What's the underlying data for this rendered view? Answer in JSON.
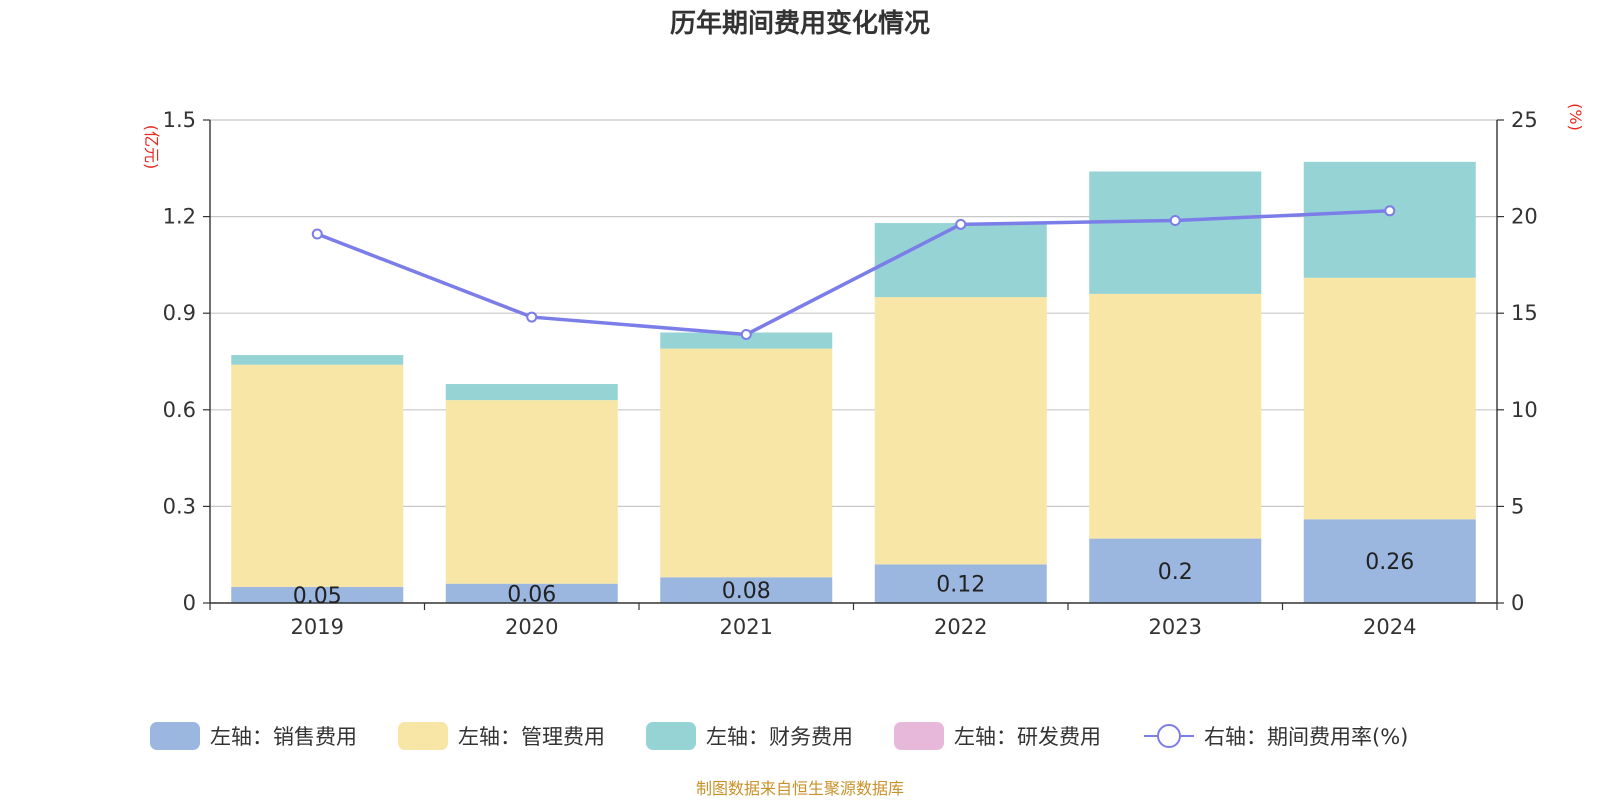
{
  "chart_data": {
    "type": "bar",
    "title": "历年期间费用变化情况",
    "categories": [
      "2019",
      "2020",
      "2021",
      "2022",
      "2023",
      "2024"
    ],
    "left_axis": {
      "unit": "(亿元)",
      "ylim": [
        0,
        1.5
      ],
      "ticks": [
        "0",
        "0.3",
        "0.6",
        "0.9",
        "1.2",
        "1.5"
      ]
    },
    "right_axis": {
      "unit": "(%)",
      "ylim": [
        0,
        25
      ],
      "ticks": [
        "0",
        "5",
        "10",
        "15",
        "20",
        "25"
      ]
    },
    "stacked": true,
    "grid": true,
    "legend_position": "bottom",
    "series": [
      {
        "name": "左轴：销售费用",
        "type": "bar",
        "axis": "left",
        "color": "#9bb7e0",
        "values": [
          0.05,
          0.06,
          0.08,
          0.12,
          0.2,
          0.26
        ],
        "labels": [
          "0.05",
          "0.06",
          "0.08",
          "0.12",
          "0.2",
          "0.26"
        ]
      },
      {
        "name": "左轴：管理费用",
        "type": "bar",
        "axis": "left",
        "color": "#f7e6a6",
        "values": [
          0.69,
          0.57,
          0.71,
          0.83,
          0.76,
          0.75
        ]
      },
      {
        "name": "左轴：财务费用",
        "type": "bar",
        "axis": "left",
        "color": "#96d3d4",
        "values": [
          0.03,
          0.05,
          0.05,
          0.23,
          0.38,
          0.36
        ]
      },
      {
        "name": "左轴：研发费用",
        "type": "bar",
        "axis": "left",
        "color": "#e8b8da",
        "values": [
          0,
          0,
          0,
          0,
          0,
          0
        ]
      },
      {
        "name": "右轴：期间费用率(%)",
        "type": "line",
        "axis": "right",
        "color": "#7b7de8",
        "values": [
          19.1,
          14.8,
          13.9,
          19.6,
          19.8,
          20.3
        ]
      }
    ],
    "source": "制图数据来自恒生聚源数据库"
  }
}
